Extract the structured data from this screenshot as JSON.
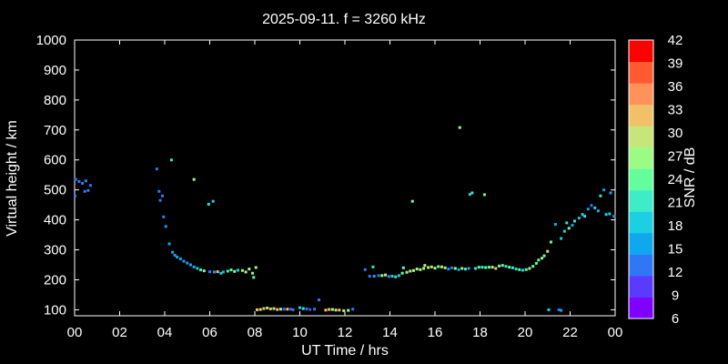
{
  "chart_data": {
    "type": "scatter",
    "title": "2025-09-11. f = 3260 kHz",
    "xlabel": "UT Time / hrs",
    "ylabel": "Virtual height / km",
    "xlim": [
      0,
      24
    ],
    "ylim": [
      80,
      1000
    ],
    "xticks": [
      "00",
      "02",
      "04",
      "06",
      "08",
      "10",
      "12",
      "14",
      "16",
      "18",
      "20",
      "22",
      "00"
    ],
    "yticks": [
      100,
      200,
      300,
      400,
      500,
      600,
      700,
      800,
      900,
      1000
    ],
    "colorbar": {
      "label": "SNR / dB",
      "ticks": [
        6,
        9,
        12,
        15,
        18,
        21,
        24,
        27,
        30,
        33,
        36,
        39,
        42
      ],
      "range": [
        6,
        42
      ],
      "colors": [
        "#8000ff",
        "#5a3bfe",
        "#3276f8",
        "#0fa8ef",
        "#1ccfe2",
        "#3eecc8",
        "#63fd9e",
        "#9bfc85",
        "#c6e57b",
        "#f3c06a",
        "#ff915a",
        "#ff5a30",
        "#ff0000"
      ]
    },
    "grid": false,
    "points": [
      [
        0.02,
        480,
        12
      ],
      [
        0.05,
        535,
        12
      ],
      [
        0.2,
        528,
        12
      ],
      [
        0.35,
        522,
        12
      ],
      [
        0.5,
        530,
        13
      ],
      [
        0.45,
        495,
        12
      ],
      [
        0.6,
        498,
        12
      ],
      [
        0.7,
        515,
        12
      ],
      [
        3.65,
        570,
        12
      ],
      [
        3.75,
        495,
        12
      ],
      [
        3.8,
        465,
        12
      ],
      [
        3.9,
        480,
        12
      ],
      [
        3.95,
        410,
        12
      ],
      [
        4.05,
        378,
        14
      ],
      [
        4.2,
        320,
        15
      ],
      [
        4.3,
        600,
        20
      ],
      [
        4.35,
        292,
        15
      ],
      [
        4.45,
        282,
        14
      ],
      [
        4.55,
        276,
        15
      ],
      [
        4.7,
        270,
        15
      ],
      [
        4.85,
        262,
        14
      ],
      [
        5.0,
        256,
        14
      ],
      [
        5.15,
        250,
        15
      ],
      [
        5.3,
        535,
        28
      ],
      [
        5.3,
        243,
        16
      ],
      [
        5.45,
        238,
        18
      ],
      [
        5.6,
        233,
        22
      ],
      [
        5.75,
        230,
        24
      ],
      [
        5.95,
        452,
        20
      ],
      [
        6.15,
        462,
        18
      ],
      [
        6.0,
        227,
        12
      ],
      [
        6.2,
        226,
        14
      ],
      [
        6.35,
        227,
        33
      ],
      [
        6.5,
        222,
        18
      ],
      [
        6.6,
        226,
        17
      ],
      [
        6.8,
        229,
        22
      ],
      [
        6.95,
        233,
        24
      ],
      [
        7.1,
        228,
        26
      ],
      [
        7.25,
        232,
        18
      ],
      [
        7.45,
        231,
        30
      ],
      [
        7.6,
        226,
        27
      ],
      [
        7.75,
        236,
        28
      ],
      [
        7.9,
        222,
        26
      ],
      [
        7.95,
        208,
        24
      ],
      [
        8.05,
        241,
        27
      ],
      [
        8.1,
        100,
        33
      ],
      [
        8.25,
        101,
        30
      ],
      [
        8.4,
        104,
        33
      ],
      [
        8.55,
        106,
        27
      ],
      [
        8.7,
        103,
        33
      ],
      [
        8.85,
        104,
        30
      ],
      [
        9.0,
        101,
        33
      ],
      [
        9.15,
        102,
        30
      ],
      [
        9.3,
        102,
        12
      ],
      [
        9.45,
        102,
        33
      ],
      [
        9.6,
        102,
        12
      ],
      [
        9.7,
        100,
        12
      ],
      [
        10.0,
        107,
        18
      ],
      [
        10.15,
        104,
        21
      ],
      [
        10.3,
        103,
        12
      ],
      [
        10.45,
        101,
        10
      ],
      [
        10.65,
        102,
        12
      ],
      [
        10.85,
        133,
        12
      ],
      [
        11.15,
        99,
        33
      ],
      [
        11.3,
        101,
        33
      ],
      [
        11.45,
        101,
        27
      ],
      [
        11.6,
        99,
        30
      ],
      [
        11.75,
        99,
        33
      ],
      [
        11.95,
        97,
        30
      ],
      [
        12.15,
        98,
        27
      ],
      [
        12.35,
        102,
        12
      ],
      [
        12.9,
        234,
        12
      ],
      [
        13.1,
        212,
        12
      ],
      [
        13.25,
        243,
        20
      ],
      [
        13.3,
        212,
        15
      ],
      [
        13.5,
        214,
        12
      ],
      [
        13.65,
        214,
        27
      ],
      [
        13.8,
        216,
        30
      ],
      [
        13.95,
        211,
        14
      ],
      [
        14.1,
        212,
        18
      ],
      [
        14.25,
        210,
        20
      ],
      [
        14.4,
        214,
        18
      ],
      [
        14.55,
        222,
        24
      ],
      [
        14.6,
        240,
        24
      ],
      [
        14.75,
        225,
        27
      ],
      [
        14.9,
        229,
        30
      ],
      [
        15.0,
        462,
        24
      ],
      [
        15.05,
        231,
        28
      ],
      [
        15.2,
        236,
        27
      ],
      [
        15.35,
        234,
        30
      ],
      [
        15.5,
        238,
        27
      ],
      [
        15.55,
        248,
        30
      ],
      [
        15.7,
        241,
        27
      ],
      [
        15.85,
        243,
        30
      ],
      [
        16.0,
        239,
        27
      ],
      [
        16.15,
        244,
        24
      ],
      [
        16.3,
        243,
        30
      ],
      [
        16.45,
        240,
        28
      ],
      [
        16.6,
        236,
        14
      ],
      [
        16.75,
        240,
        12
      ],
      [
        16.9,
        238,
        27
      ],
      [
        17.05,
        234,
        15
      ],
      [
        17.1,
        708,
        27
      ],
      [
        17.2,
        238,
        27
      ],
      [
        17.35,
        236,
        21
      ],
      [
        17.5,
        238,
        15
      ],
      [
        17.55,
        485,
        18
      ],
      [
        17.65,
        490,
        21
      ],
      [
        17.8,
        238,
        20
      ],
      [
        17.95,
        242,
        24
      ],
      [
        18.1,
        242,
        21
      ],
      [
        18.2,
        484,
        24
      ],
      [
        18.25,
        241,
        24
      ],
      [
        18.4,
        242,
        24
      ],
      [
        18.55,
        242,
        27
      ],
      [
        18.7,
        238,
        33
      ],
      [
        18.85,
        246,
        24
      ],
      [
        19.0,
        248,
        24
      ],
      [
        19.15,
        245,
        20
      ],
      [
        19.3,
        242,
        24
      ],
      [
        19.45,
        240,
        21
      ],
      [
        19.6,
        236,
        20
      ],
      [
        19.75,
        234,
        24
      ],
      [
        19.9,
        232,
        18
      ],
      [
        20.05,
        234,
        24
      ],
      [
        20.2,
        238,
        27
      ],
      [
        20.35,
        245,
        24
      ],
      [
        20.5,
        255,
        24
      ],
      [
        20.6,
        266,
        24
      ],
      [
        20.75,
        272,
        28
      ],
      [
        20.85,
        280,
        24
      ],
      [
        21.0,
        295,
        30
      ],
      [
        21.05,
        100,
        18
      ],
      [
        21.15,
        326,
        24
      ],
      [
        21.35,
        385,
        15
      ],
      [
        21.5,
        100,
        12
      ],
      [
        21.6,
        98,
        15
      ],
      [
        21.6,
        338,
        18
      ],
      [
        21.75,
        362,
        18
      ],
      [
        21.85,
        390,
        20
      ],
      [
        21.95,
        372,
        24
      ],
      [
        22.1,
        382,
        15
      ],
      [
        22.2,
        396,
        20
      ],
      [
        22.4,
        406,
        17
      ],
      [
        22.55,
        418,
        18
      ],
      [
        22.65,
        412,
        20
      ],
      [
        22.8,
        436,
        14
      ],
      [
        22.95,
        448,
        12
      ],
      [
        23.1,
        440,
        18
      ],
      [
        23.25,
        430,
        15
      ],
      [
        23.35,
        480,
        20
      ],
      [
        23.5,
        500,
        14
      ],
      [
        23.6,
        418,
        18
      ],
      [
        23.75,
        420,
        18
      ],
      [
        23.8,
        490,
        15
      ],
      [
        23.95,
        412,
        14
      ]
    ]
  }
}
